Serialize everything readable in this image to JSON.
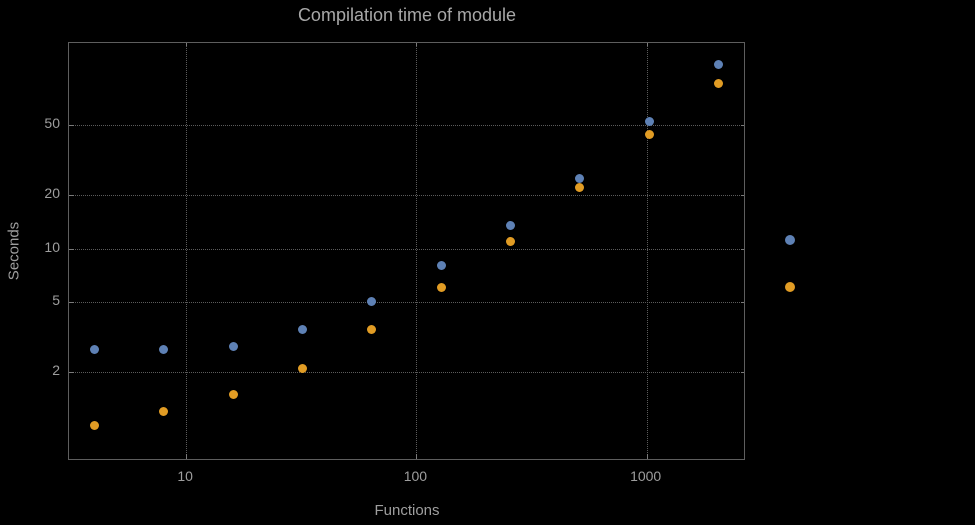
{
  "chart_data": {
    "type": "scatter",
    "title": "Compilation time of module",
    "xlabel": "Functions",
    "ylabel": "Seconds",
    "x_scale": "log",
    "y_scale": "log",
    "xlim": [
      3.1,
      2700
    ],
    "ylim": [
      0.63,
      145
    ],
    "grid": true,
    "legend_position": "right-outside",
    "x_ticks": [
      10,
      100,
      1000
    ],
    "x_tick_labels": [
      "10",
      "100",
      "1000"
    ],
    "y_ticks": [
      2,
      5,
      10,
      20,
      50
    ],
    "y_tick_labels": [
      "2",
      "5",
      "10",
      "20",
      "50"
    ],
    "x": [
      4,
      8,
      16,
      32,
      64,
      128,
      256,
      512,
      1024,
      2048
    ],
    "series": [
      {
        "name": "series-blue",
        "color": "#5e81b5",
        "values": [
          2.7,
          2.7,
          2.8,
          3.5,
          5.0,
          8.0,
          13.5,
          25,
          52,
          110
        ]
      },
      {
        "name": "series-orange",
        "color": "#e19c24",
        "values": [
          1.0,
          1.2,
          1.5,
          2.1,
          3.5,
          6.0,
          11,
          22,
          44,
          86
        ]
      }
    ],
    "legend": {
      "items": [
        {
          "label": "",
          "color": "#5e81b5"
        },
        {
          "label": "",
          "color": "#e19c24"
        }
      ]
    }
  },
  "colors": {
    "background": "#000000",
    "text": "#9e9e9e",
    "title_text": "#a8a8a8",
    "grid": "#5c5c5c",
    "frame": "#5e5e5e",
    "series_blue": "#5e81b5",
    "series_orange": "#e19c24"
  }
}
